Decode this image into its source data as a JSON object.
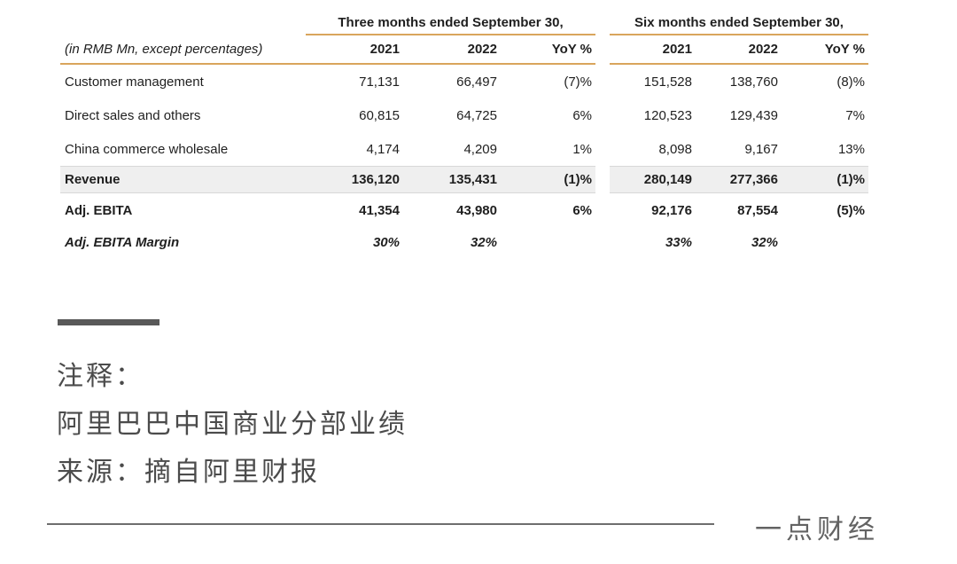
{
  "table": {
    "unit_label": "(in RMB Mn, except percentages)",
    "sections": [
      {
        "title": "Three months ended September 30,",
        "columns": [
          "2021",
          "2022",
          "YoY %"
        ]
      },
      {
        "title": "Six months ended September 30,",
        "columns": [
          "2021",
          "2022",
          "YoY %"
        ]
      }
    ],
    "rows": [
      {
        "label": "Customer management",
        "style": "normal",
        "three": [
          "71,131",
          "66,497",
          "(7)%"
        ],
        "six": [
          "151,528",
          "138,760",
          "(8)%"
        ]
      },
      {
        "label": "Direct sales and others",
        "style": "normal",
        "three": [
          "60,815",
          "64,725",
          "6%"
        ],
        "six": [
          "120,523",
          "129,439",
          "7%"
        ]
      },
      {
        "label": "China commerce wholesale",
        "style": "normal",
        "three": [
          "4,174",
          "4,209",
          "1%"
        ],
        "six": [
          "8,098",
          "9,167",
          "13%"
        ]
      },
      {
        "label": "Revenue",
        "style": "total",
        "three": [
          "136,120",
          "135,431",
          "(1)%"
        ],
        "six": [
          "280,149",
          "277,366",
          "(1)%"
        ]
      },
      {
        "label": "Adj. EBITA",
        "style": "bold",
        "three": [
          "41,354",
          "43,980",
          "6%"
        ],
        "six": [
          "92,176",
          "87,554",
          "(5)%"
        ]
      },
      {
        "label": "Adj. EBITA Margin",
        "style": "bold-italic",
        "three": [
          "30%",
          "32%",
          ""
        ],
        "six": [
          "33%",
          "32%",
          ""
        ]
      }
    ]
  },
  "notes": {
    "heading": "注释：",
    "caption": "阿里巴巴中国商业分部业绩",
    "source": "来源：摘自阿里财报"
  },
  "footer": {
    "brand": "一点财经"
  },
  "colors": {
    "page_bg": "#ffffff",
    "accent_line": "#D9A55C",
    "table_text": "#1f1f1f",
    "total_band": "#EFEFEF",
    "band_border": "#D8D8D8",
    "divider_bar": "#595959",
    "notes_text": "#4b4b4b",
    "rule_color": "#6e6e6e",
    "brand_text": "#636363"
  }
}
